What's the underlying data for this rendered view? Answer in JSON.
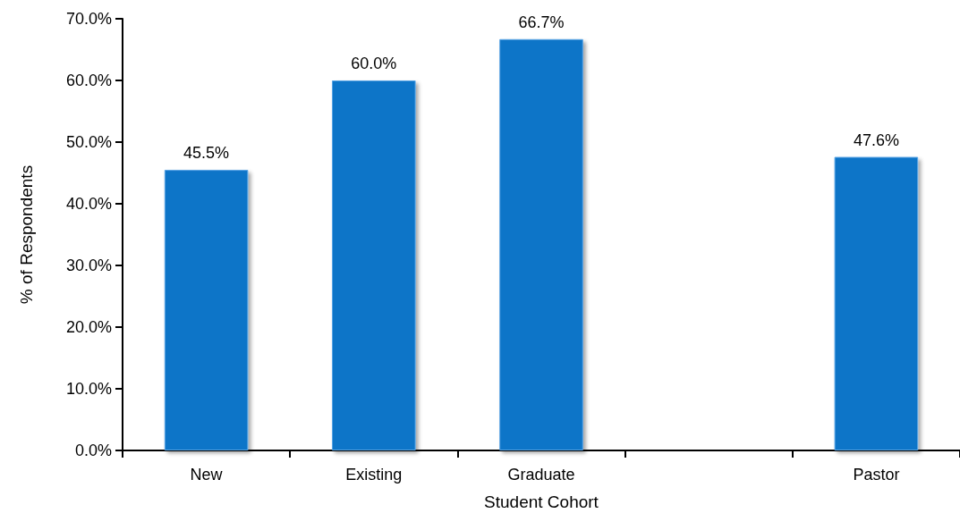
{
  "chart_data": {
    "type": "bar",
    "xlabel": "Student Cohort",
    "ylabel": "% of Respondents",
    "categories": [
      "New",
      "Existing",
      "Graduate",
      null,
      "Pastor"
    ],
    "values": [
      45.5,
      60.0,
      66.7,
      null,
      47.6
    ],
    "value_labels": [
      "45.5%",
      "60.0%",
      "66.7%",
      null,
      "47.6%"
    ],
    "color": "#0f74c8",
    "yticks": [
      {
        "value": 0,
        "label": "0.0%"
      },
      {
        "value": 10,
        "label": "10.0%"
      },
      {
        "value": 20,
        "label": "20.0%"
      },
      {
        "value": 30,
        "label": "30.0%"
      },
      {
        "value": 40,
        "label": "40.0%"
      },
      {
        "value": 50,
        "label": "50.0%"
      },
      {
        "value": 60,
        "label": "60.0%"
      },
      {
        "value": 70,
        "label": "70.0%"
      }
    ],
    "ylim": [
      0,
      70
    ]
  }
}
